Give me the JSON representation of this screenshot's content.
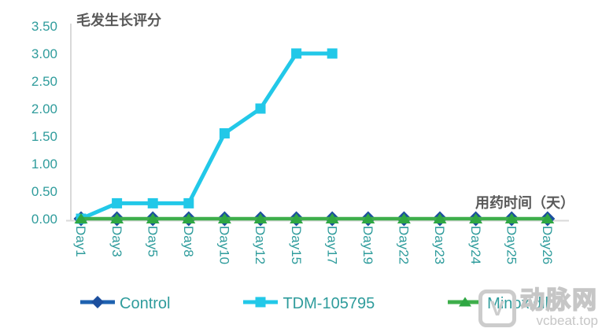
{
  "colors": {
    "background": "#FFFFFF",
    "axis_line": "#D9D9D9",
    "tick_text": "#2F9C9C",
    "label_text": "#595959",
    "legend_text": "#2F9C9C",
    "watermark": "#C6C6C6"
  },
  "chart_data": {
    "type": "line",
    "title": "毛发生长评分",
    "xlabel": "用药时间（天）",
    "ylabel": "",
    "ylim": [
      0,
      3.5
    ],
    "grid": false,
    "legend_position": "bottom",
    "categories": [
      "Day1",
      "Day3",
      "Day5",
      "Day8",
      "Day10",
      "Day12",
      "Day15",
      "Day17",
      "Day19",
      "Day22",
      "Day23",
      "Day24",
      "Day25",
      "Day26"
    ],
    "y_ticks": [
      {
        "value": 0.0,
        "label": "0.00"
      },
      {
        "value": 0.5,
        "label": "0.50"
      },
      {
        "value": 1.0,
        "label": "1.00"
      },
      {
        "value": 1.5,
        "label": "1.50"
      },
      {
        "value": 2.0,
        "label": "2.00"
      },
      {
        "value": 2.5,
        "label": "2.50"
      },
      {
        "value": 3.0,
        "label": "3.00"
      },
      {
        "value": 3.5,
        "label": "3.50"
      }
    ],
    "series": [
      {
        "name": "Control",
        "marker": "diamond",
        "color": "#1E62B0",
        "marker_color": "#1C4F9E",
        "values": [
          0,
          0,
          0,
          0,
          0,
          0,
          0,
          0,
          0,
          0,
          0,
          0,
          0,
          0
        ]
      },
      {
        "name": "TDM-105795",
        "marker": "square",
        "color": "#22C8E8",
        "marker_color": "#22C8E8",
        "values": [
          0,
          0.28,
          0.28,
          0.28,
          1.55,
          2.0,
          3.0,
          3.0,
          null,
          null,
          null,
          null,
          null,
          null
        ]
      },
      {
        "name": "Minoxidil",
        "marker": "triangle",
        "color": "#3EAE4B",
        "marker_color": "#2FA743",
        "values": [
          0,
          0,
          0,
          0,
          0,
          0,
          0,
          0,
          0,
          0,
          0,
          0,
          0,
          0
        ]
      }
    ]
  },
  "legend": {
    "items": [
      {
        "label": "Control"
      },
      {
        "label": "TDM-105795"
      },
      {
        "label": "Minoxidil"
      }
    ]
  },
  "watermark": {
    "logo_glyph": "V",
    "brand": "动脉网",
    "url": "vcbeat.top"
  }
}
